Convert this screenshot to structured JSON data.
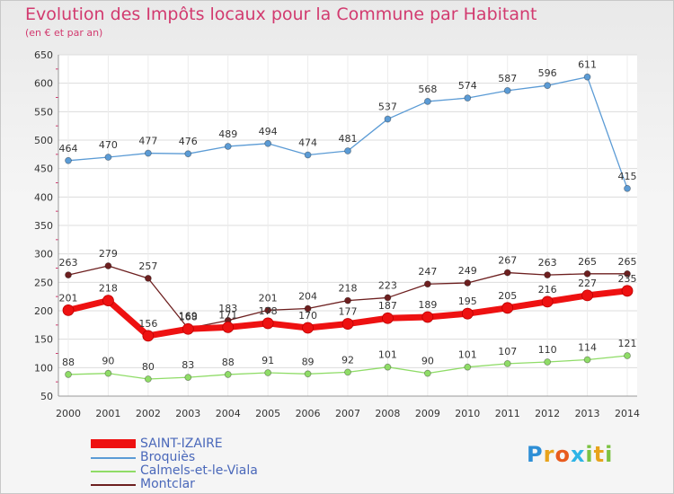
{
  "title": "Evolution des Impôts locaux pour la Commune par Habitant",
  "subtitle": "(en € et par an)",
  "brand": {
    "letters": [
      "P",
      "r",
      "o",
      "x",
      "i",
      "t",
      "i"
    ],
    "colors": [
      "#2e8fd6",
      "#e8a31c",
      "#e85b1e",
      "#2eb4e6",
      "#7cc242",
      "#e8a31c",
      "#7cc242"
    ]
  },
  "chart_data": {
    "type": "line",
    "title": "Evolution des Impôts locaux pour la Commune par Habitant",
    "ylabel": "(en € et par an)",
    "xlabel": "",
    "ylim": [
      50,
      650
    ],
    "yticks": [
      50,
      100,
      150,
      200,
      250,
      300,
      350,
      400,
      450,
      500,
      550,
      600,
      650
    ],
    "x": [
      2000,
      2001,
      2002,
      2003,
      2004,
      2005,
      2006,
      2007,
      2008,
      2009,
      2010,
      2011,
      2012,
      2013,
      2014
    ],
    "grid": true,
    "legend": "bottom-left",
    "series": [
      {
        "name": "SAINT-IZAIRE",
        "color": "#ee1111",
        "emphasis": true,
        "values": [
          201,
          218,
          156,
          168,
          171,
          178,
          170,
          177,
          187,
          189,
          195,
          205,
          216,
          227,
          235
        ],
        "labels": [
          "201",
          "218",
          "156",
          "168",
          "171",
          "178",
          "170",
          "177",
          "187",
          "189",
          "195",
          "205",
          "216",
          "227",
          "235"
        ]
      },
      {
        "name": "Broquiès",
        "color": "#5b9bd5",
        "emphasis": false,
        "values": [
          464,
          470,
          477,
          476,
          489,
          494,
          474,
          481,
          537,
          568,
          574,
          587,
          596,
          611,
          415
        ],
        "labels": [
          "464",
          "470",
          "477",
          "476",
          "489",
          "494",
          "474",
          "481",
          "537",
          "568",
          "574",
          "587",
          "596",
          "611",
          "415"
        ]
      },
      {
        "name": "Calmels-et-le-Viala",
        "color": "#8fdc67",
        "emphasis": false,
        "values": [
          88,
          90,
          80,
          83,
          88,
          91,
          89,
          92,
          101,
          90,
          101,
          107,
          110,
          114,
          121
        ],
        "labels": [
          "88",
          "90",
          "80",
          "83",
          "88",
          "91",
          "89",
          "92",
          "101",
          "90",
          "101",
          "107",
          "110",
          "114",
          "121"
        ]
      },
      {
        "name": "Montclar",
        "color": "#6d1f1f",
        "emphasis": false,
        "values": [
          263,
          279,
          257,
          169,
          183,
          201,
          204,
          218,
          223,
          247,
          249,
          267,
          263,
          265,
          265
        ],
        "labels": [
          "263",
          "279",
          "257",
          "169",
          "183",
          "201",
          "204",
          "218",
          "223",
          "247",
          "249",
          "267",
          "263",
          "265",
          "265"
        ]
      }
    ]
  }
}
